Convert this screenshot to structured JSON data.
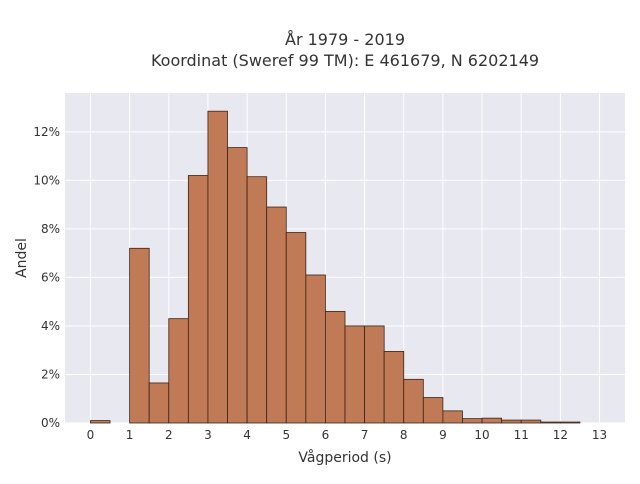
{
  "chart_data": {
    "type": "bar",
    "title": "År 1979 - 2019",
    "subtitle": "Koordinat (Sweref 99 TM): E 461679, N 6202149",
    "xlabel": "Vågperiod (s)",
    "ylabel": "Andel",
    "bin_width": 0.5,
    "bin_starts": [
      0,
      0.5,
      1,
      1.5,
      2,
      2.5,
      3,
      3.5,
      4,
      4.5,
      5,
      5.5,
      6,
      6.5,
      7,
      7.5,
      8,
      8.5,
      9,
      9.5,
      10,
      10.5,
      11,
      11.5,
      12,
      12.5
    ],
    "values": [
      0.1,
      0,
      7.2,
      1.65,
      4.3,
      10.2,
      12.85,
      11.35,
      10.15,
      8.9,
      7.85,
      6.1,
      4.6,
      4.0,
      4.0,
      2.95,
      1.8,
      1.05,
      0.5,
      0.18,
      0.2,
      0.12,
      0.12,
      0.04,
      0.04,
      0
    ],
    "xlim": [
      -0.65,
      13.65
    ],
    "ylim": [
      0,
      13.6
    ],
    "x_ticks": [
      0,
      1,
      2,
      3,
      4,
      5,
      6,
      7,
      8,
      9,
      10,
      11,
      12,
      13
    ],
    "y_ticks": [
      0,
      2,
      4,
      6,
      8,
      10,
      12
    ],
    "y_tick_labels": [
      "0%",
      "2%",
      "4%",
      "6%",
      "8%",
      "10%",
      "12%"
    ],
    "grid": true,
    "bar_color": "#c07a55",
    "bar_edge_color": "#3a2418",
    "plot_background": "#e8e8f0",
    "grid_color": "#ffffff"
  }
}
